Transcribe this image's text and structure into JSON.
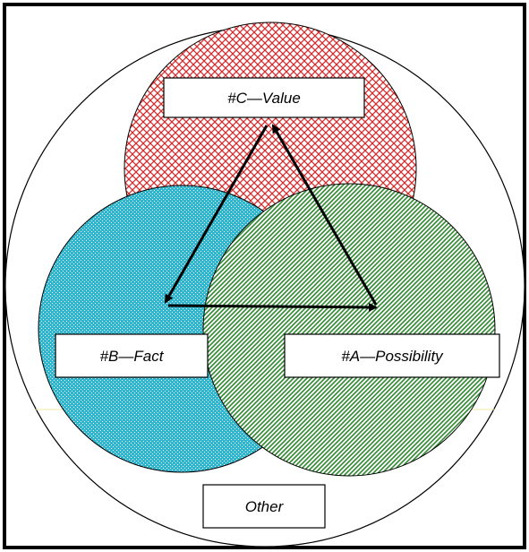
{
  "labels": {
    "value": "#C—Value",
    "fact": "#B—Fact",
    "possibility": "#A—Possibility",
    "other": "Other"
  },
  "colors": {
    "frame": "#000000",
    "background": "#ffffff",
    "value_pattern": "#d92b2b",
    "fact_pattern": "#2fb7cf",
    "possibility_pattern": "#2e8a2e",
    "arrow": "#000000",
    "faint_line": "#efe9a0"
  }
}
